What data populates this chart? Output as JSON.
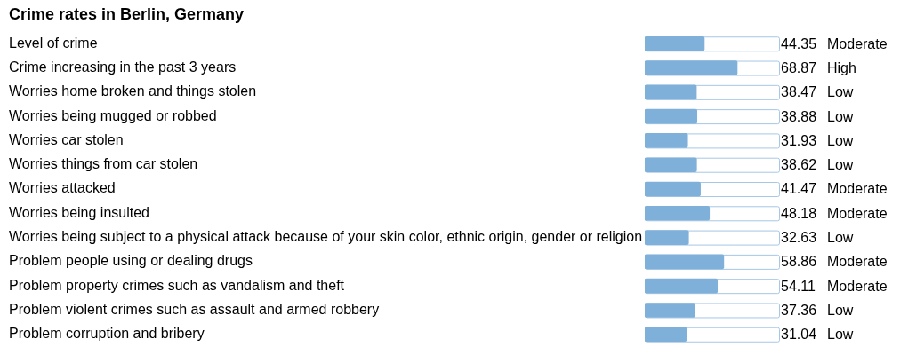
{
  "chart_data": {
    "type": "bar",
    "orientation": "horizontal",
    "title": "Crime rates in Berlin, Germany",
    "categories": [
      "Level of crime",
      "Crime increasing in the past 3 years",
      "Worries home broken and things stolen",
      "Worries being mugged or robbed",
      "Worries car stolen",
      "Worries things from car stolen",
      "Worries attacked",
      "Worries being insulted",
      "Worries being subject to a physical attack because of your skin color, ethnic origin, gender or religion",
      "Problem people using or dealing drugs",
      "Problem property crimes such as vandalism and theft",
      "Problem violent crimes such as assault and armed robbery",
      "Problem corruption and bribery"
    ],
    "values": [
      44.35,
      68.87,
      38.47,
      38.88,
      31.93,
      38.62,
      41.47,
      48.18,
      32.63,
      58.86,
      54.11,
      37.36,
      31.04
    ],
    "color": "#7fb0da",
    "xlim": [
      0,
      100
    ],
    "tick_labels": "y",
    "data_labels": true,
    "annotations": [
      "Moderate",
      "High",
      "Low",
      "Low",
      "Low",
      "Low",
      "Moderate",
      "Moderate",
      "Low",
      "Moderate",
      "Moderate",
      "Low",
      "Low"
    ]
  }
}
